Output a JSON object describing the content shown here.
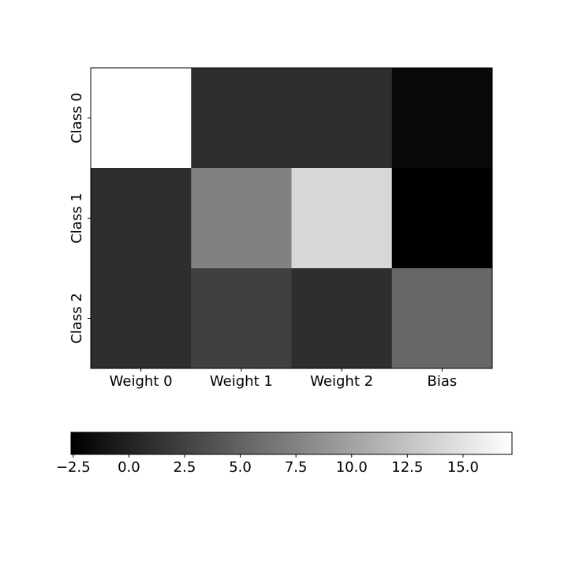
{
  "chart_data": {
    "type": "heatmap",
    "title": "",
    "xlabel": "",
    "ylabel": "",
    "colormap": "gray",
    "x_categories": [
      "Weight 0",
      "Weight 1",
      "Weight 2",
      "Bias"
    ],
    "y_categories": [
      "Class 0",
      "Class 1",
      "Class 2"
    ],
    "values": [
      [
        17.2,
        1.0,
        1.0,
        -1.8
      ],
      [
        1.0,
        7.4,
        14.1,
        -2.6
      ],
      [
        1.0,
        2.4,
        1.0,
        5.4
      ]
    ],
    "value_range": [
      -2.6,
      17.2
    ],
    "colorbar": {
      "orientation": "horizontal",
      "placement": "bottom",
      "ticks": [
        -2.5,
        0.0,
        2.5,
        5.0,
        7.5,
        10.0,
        12.5,
        15.0
      ],
      "tick_labels": [
        "−2.5",
        "0.0",
        "2.5",
        "5.0",
        "7.5",
        "10.0",
        "12.5",
        "15.0"
      ]
    },
    "grid": false
  }
}
